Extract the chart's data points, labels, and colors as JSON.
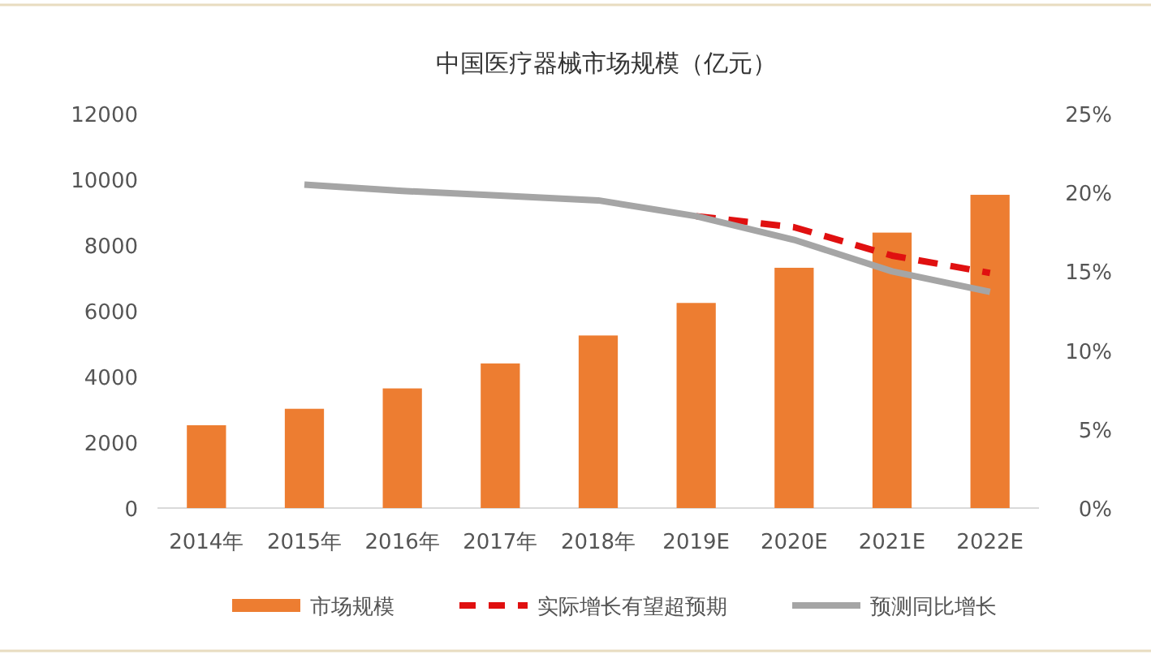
{
  "chart_data": {
    "type": "bar",
    "title": "中国医疗器械市场规模（亿元）",
    "categories": [
      "2014年",
      "2015年",
      "2016年",
      "2017年",
      "2018年",
      "2019E",
      "2020E",
      "2021E",
      "2022E"
    ],
    "series": [
      {
        "name": "市场规模",
        "color": "#ed7d31",
        "values": [
          2520,
          3020,
          3640,
          4400,
          5250,
          6240,
          7310,
          8380,
          9530
        ]
      },
      {
        "name": "实际增长有望超预期",
        "type": "line",
        "axis": "y2",
        "line_style": "dashed",
        "color": "#e01010",
        "values": [
          null,
          null,
          null,
          null,
          null,
          18.5,
          17.8,
          16.0,
          14.9
        ]
      },
      {
        "name": "预测同比增长",
        "type": "line",
        "axis": "y2",
        "line_style": "solid",
        "color": "#a5a5a5",
        "values": [
          null,
          20.5,
          20.1,
          19.8,
          19.5,
          18.5,
          17.0,
          15.0,
          13.7
        ]
      }
    ],
    "ylim": [
      0,
      12000
    ],
    "yticks": [
      0,
      2000,
      4000,
      6000,
      8000,
      10000,
      12000
    ],
    "y2lim": [
      0,
      25
    ],
    "y2ticks": [
      {
        "value": 0,
        "label": "0%"
      },
      {
        "value": 5,
        "label": "5%"
      },
      {
        "value": 10,
        "label": "10%"
      },
      {
        "value": 15,
        "label": "15%"
      },
      {
        "value": 20,
        "label": "20%"
      },
      {
        "value": 25,
        "label": "25%"
      }
    ],
    "legend": "bottom",
    "grid": false,
    "marker": "none"
  }
}
